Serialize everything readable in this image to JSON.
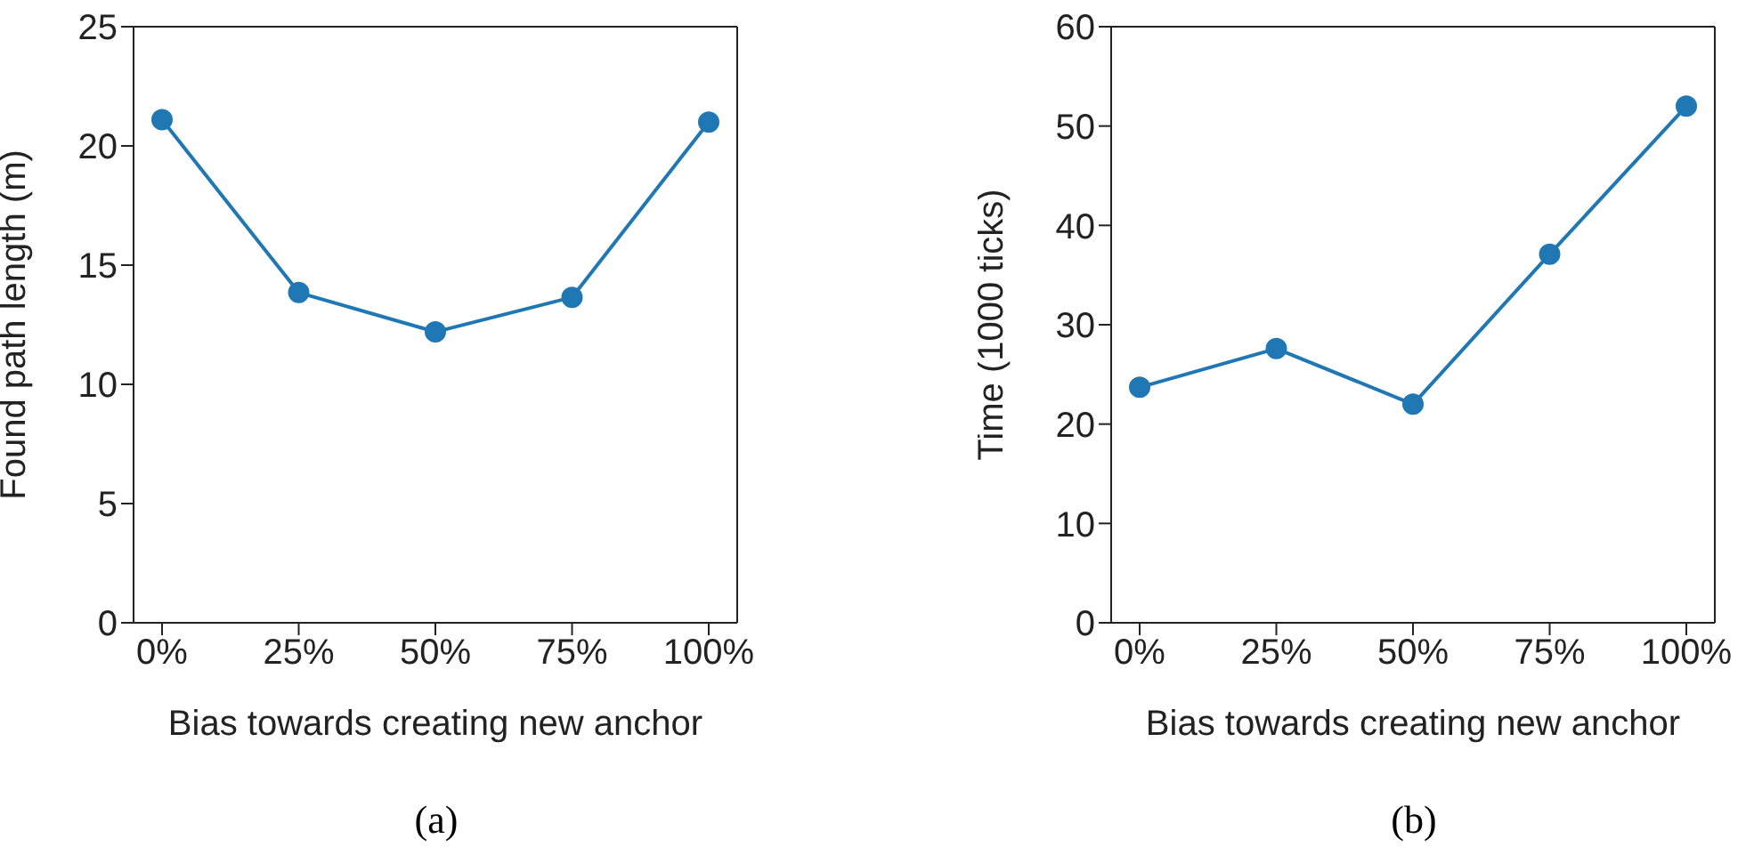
{
  "chart_data": [
    {
      "type": "line",
      "categories": [
        "0%",
        "25%",
        "50%",
        "75%",
        "100%"
      ],
      "xlabel": "Bias towards creating new anchor",
      "ylabel": "Found path length (m)",
      "ylim": [
        0,
        25
      ],
      "yticks": [
        0,
        5,
        10,
        15,
        20,
        25
      ],
      "grid": false,
      "legend": false,
      "marker": "circle",
      "line_style": "solid",
      "annotations": [
        "(a)"
      ],
      "series": [
        {
          "color": "#1f77b4",
          "values": [
            21.1,
            13.85,
            12.2,
            13.65,
            21.0
          ]
        }
      ]
    },
    {
      "type": "line",
      "categories": [
        "0%",
        "25%",
        "50%",
        "75%",
        "100%"
      ],
      "xlabel": "Bias towards creating new anchor",
      "ylabel": "Time (1000 ticks)",
      "ylim": [
        0,
        60
      ],
      "yticks": [
        0,
        10,
        20,
        30,
        40,
        50,
        60
      ],
      "grid": false,
      "legend": false,
      "marker": "circle",
      "line_style": "solid",
      "annotations": [
        "(b)"
      ],
      "series": [
        {
          "color": "#1f77b4",
          "values": [
            23.7,
            27.6,
            22.0,
            37.1,
            52.0
          ]
        }
      ]
    }
  ]
}
